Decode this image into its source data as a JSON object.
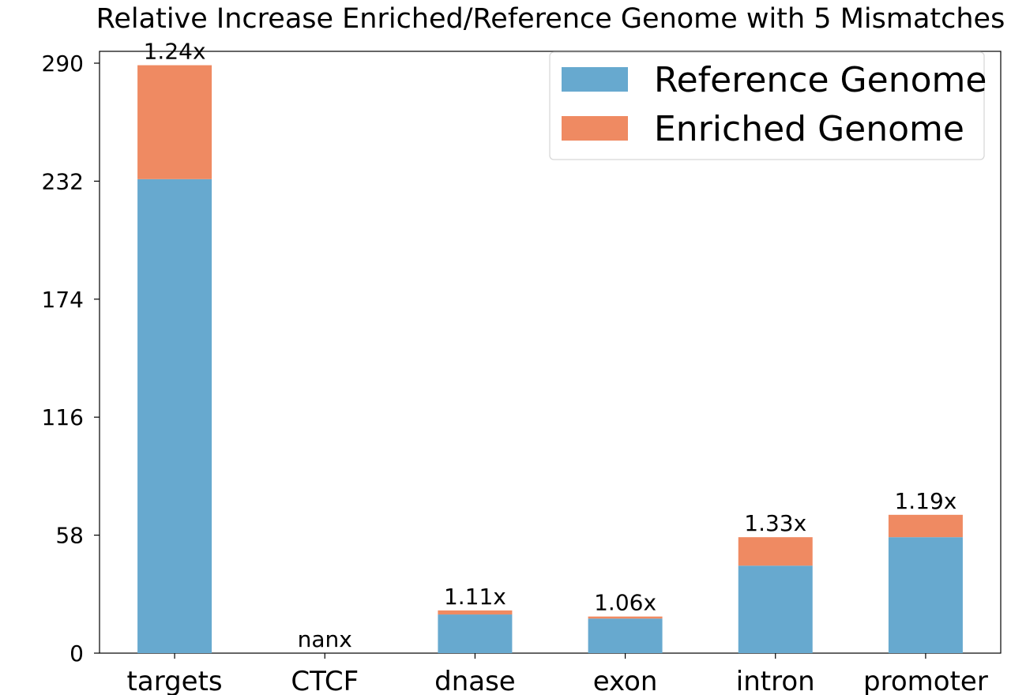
{
  "chart_data": {
    "type": "bar",
    "stacked": true,
    "title": "Relative Increase Enriched/Reference Genome with 5 Mismatches",
    "xlabel": "",
    "ylabel": "",
    "categories": [
      "targets",
      "CTCF",
      "dnase",
      "exon",
      "intron",
      "promoter"
    ],
    "series": [
      {
        "name": "Reference Genome",
        "color": "#67a9cf",
        "values": [
          233,
          0,
          19,
          17,
          43,
          57
        ]
      },
      {
        "name": "Enriched Genome",
        "color": "#ef8a62",
        "values": [
          56,
          0,
          2,
          1,
          14,
          11
        ]
      }
    ],
    "data_labels": [
      "1.24x",
      "nanx",
      "1.11x",
      "1.06x",
      "1.33x",
      "1.19x"
    ],
    "ylim": [
      0,
      290
    ],
    "yticks": [
      0,
      58,
      116,
      174,
      232,
      290
    ],
    "grid": false,
    "legend_position": "top-right"
  }
}
